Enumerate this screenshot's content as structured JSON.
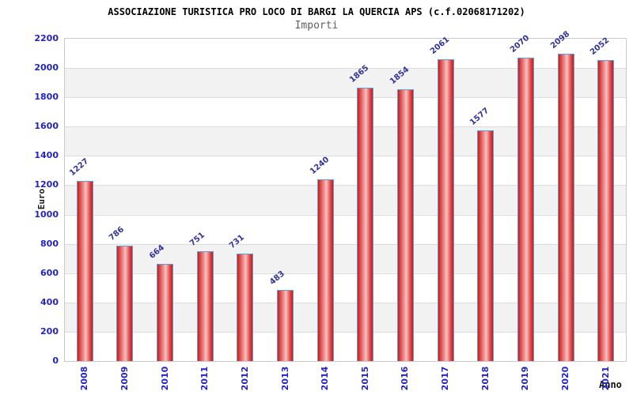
{
  "chart_data": {
    "type": "bar",
    "title": "ASSOCIAZIONE TURISTICA PRO LOCO DI BARGI LA QUERCIA APS (c.f.02068171202)",
    "subtitle": "Importi",
    "xlabel": "Anno",
    "ylabel": "Euro",
    "categories": [
      "2008",
      "2009",
      "2010",
      "2011",
      "2012",
      "2013",
      "2014",
      "2015",
      "2016",
      "2017",
      "2018",
      "2019",
      "2020",
      "2021"
    ],
    "values": [
      1227,
      786,
      664,
      751,
      731,
      483,
      1240,
      1865,
      1854,
      2061,
      1577,
      2070,
      2098,
      2052
    ],
    "ylim": [
      0,
      2200
    ],
    "ytick_step": 200,
    "yticks": [
      0,
      200,
      400,
      600,
      800,
      1000,
      1200,
      1400,
      1600,
      1800,
      2000,
      2200
    ],
    "grid": true,
    "legend_position": "none",
    "bands_alternating": true,
    "colors": {
      "bar_edge": "#c91b1b",
      "bar_mid": "#f6c2c2",
      "bar_border": "#5f9fd8",
      "value_label": "#32329b",
      "tick_label": "#2323c8",
      "band_dark": "#f2f2f2",
      "band_light": "#ffffff",
      "grid_line": "#dcdcdc",
      "plot_border": "#c9c9c9",
      "title": "#000000",
      "subtitle": "#5f5f5f",
      "axis_title": "#1a1a1a"
    }
  }
}
